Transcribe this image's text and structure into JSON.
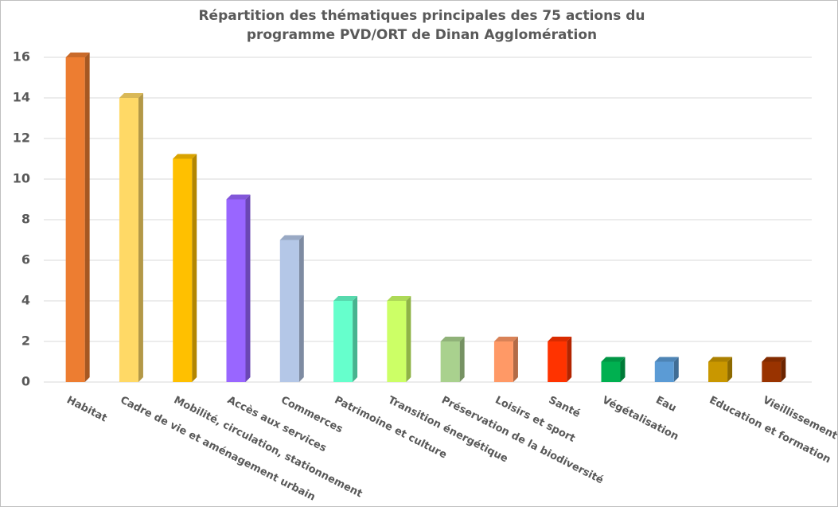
{
  "chart_data": {
    "type": "bar3d",
    "title": "Répartition des thématiques principales des 75 actions du programme PVD/ORT de Dinan Agglomération",
    "categories": [
      "Habitat",
      "Cadre de vie et aménagement urbain",
      "Mobilité, circulation, stationnement",
      "Accès aux services",
      "Commerces",
      "Patrimoine et culture",
      "Transition énergétique",
      "Préservation de la biodiversité",
      "Loisirs et sport",
      "Santé",
      "Végétalisation",
      "Eau",
      "Education et formation",
      "Vieillissement"
    ],
    "values": [
      16,
      14,
      11,
      9,
      7,
      4,
      4,
      2,
      2,
      2,
      1,
      1,
      1,
      1
    ],
    "colors": [
      "#ed7d31",
      "#ffd966",
      "#ffc000",
      "#9966ff",
      "#b4c7e7",
      "#66ffcc",
      "#ccff66",
      "#a9d18e",
      "#ff9966",
      "#ff3300",
      "#00b050",
      "#5b9bd5",
      "#c99700",
      "#993300"
    ],
    "ylim": [
      0,
      16
    ],
    "yticks": [
      0,
      2,
      4,
      6,
      8,
      10,
      12,
      14,
      16
    ],
    "grid": true
  }
}
